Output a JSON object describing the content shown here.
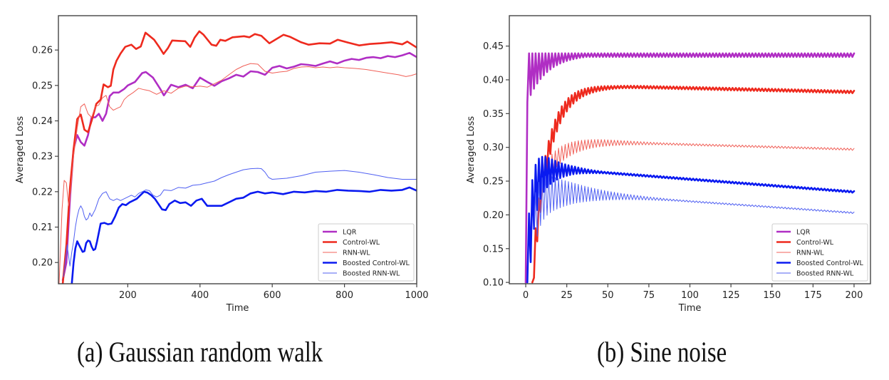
{
  "colors": {
    "LQR": "#b02ec4",
    "Control-WL": "#ee2a1e",
    "RNN-WL": "#f06058",
    "Boosted Control-WL": "#0a1af0",
    "Boosted RNN-WL": "#5060f2",
    "axis": "#444444"
  },
  "captions": {
    "a": "(a) Gaussian random walk",
    "b": "(b) Sine noise"
  },
  "chart_data": [
    {
      "type": "line",
      "id": "a",
      "title": "",
      "xlabel": "Time",
      "ylabel": "Averaged Loss",
      "xlim": [
        8,
        1000
      ],
      "ylim": [
        0.194,
        0.2697
      ],
      "xticks": [
        200,
        400,
        600,
        800,
        1000
      ],
      "yticks": [
        0.2,
        0.21,
        0.22,
        0.23,
        0.24,
        0.25,
        0.26
      ],
      "ytick_labels": [
        "0.20",
        "0.21",
        "0.22",
        "0.23",
        "0.24",
        "0.25",
        "0.26"
      ],
      "grid": false,
      "legend": "lower-right",
      "series": [
        {
          "name": "LQR",
          "width": "thick",
          "x": [
            20,
            30,
            40,
            50,
            60,
            70,
            80,
            90,
            100,
            110,
            120,
            130,
            140,
            150,
            160,
            175,
            190,
            200,
            220,
            240,
            250,
            270,
            290,
            300,
            320,
            340,
            360,
            380,
            400,
            420,
            440,
            460,
            480,
            500,
            520,
            540,
            560,
            580,
            600,
            620,
            640,
            660,
            680,
            700,
            720,
            740,
            760,
            780,
            800,
            820,
            840,
            860,
            880,
            900,
            920,
            940,
            960,
            980,
            1000
          ],
          "y": [
            0.195,
            0.2,
            0.218,
            0.232,
            0.236,
            0.234,
            0.233,
            0.236,
            0.241,
            0.241,
            0.242,
            0.24,
            0.242,
            0.247,
            0.248,
            0.248,
            0.249,
            0.25,
            0.251,
            0.2535,
            0.2538,
            0.2522,
            0.249,
            0.2472,
            0.2502,
            0.2495,
            0.2502,
            0.2492,
            0.2522,
            0.251,
            0.2499,
            0.2512,
            0.252,
            0.253,
            0.2525,
            0.254,
            0.2538,
            0.253,
            0.255,
            0.2555,
            0.2548,
            0.2553,
            0.256,
            0.2558,
            0.2555,
            0.2562,
            0.2568,
            0.2562,
            0.257,
            0.2575,
            0.2572,
            0.2578,
            0.258,
            0.2577,
            0.2583,
            0.258,
            0.2585,
            0.2592,
            0.258
          ]
        },
        {
          "name": "Control-WL",
          "width": "thick",
          "x": [
            20,
            30,
            40,
            50,
            60,
            70,
            80,
            90,
            100,
            113,
            125,
            133,
            145,
            153,
            160,
            169,
            180,
            193,
            210,
            223,
            236,
            249,
            260,
            273,
            286,
            299,
            311,
            323,
            340,
            359,
            373,
            385,
            398,
            410,
            432,
            445,
            456,
            470,
            490,
            522,
            537,
            552,
            570,
            592,
            610,
            631,
            650,
            680,
            701,
            731,
            760,
            781,
            810,
            841,
            870,
            900,
            930,
            960,
            974,
            1000
          ],
          "y": [
            0.194,
            0.205,
            0.221,
            0.232,
            0.2405,
            0.2418,
            0.2375,
            0.2368,
            0.24,
            0.2448,
            0.246,
            0.2503,
            0.2495,
            0.2499,
            0.2545,
            0.257,
            0.259,
            0.2609,
            0.2615,
            0.2603,
            0.261,
            0.2649,
            0.264,
            0.2629,
            0.261,
            0.2589,
            0.2605,
            0.2627,
            0.2626,
            0.2625,
            0.2609,
            0.2635,
            0.2653,
            0.2643,
            0.2615,
            0.2612,
            0.2629,
            0.2626,
            0.2636,
            0.2639,
            0.2636,
            0.2645,
            0.264,
            0.2619,
            0.263,
            0.2643,
            0.2637,
            0.2622,
            0.2615,
            0.2619,
            0.2618,
            0.2629,
            0.2621,
            0.2613,
            0.2617,
            0.2619,
            0.2622,
            0.2616,
            0.2624,
            0.2607
          ]
        },
        {
          "name": "RNN-WL",
          "width": "thin",
          "x": [
            10,
            18,
            24,
            30,
            36,
            42,
            50,
            60,
            70,
            80,
            90,
            100,
            110,
            120,
            130,
            140,
            150,
            160,
            170,
            180,
            190,
            200,
            215,
            230,
            245,
            260,
            280,
            300,
            320,
            340,
            360,
            380,
            400,
            420,
            440,
            460,
            480,
            500,
            520,
            540,
            560,
            580,
            600,
            620,
            640,
            660,
            680,
            700,
            720,
            740,
            760,
            780,
            800,
            830,
            860,
            890,
            920,
            950,
            970,
            985,
            1000
          ],
          "y": [
            0.194,
            0.215,
            0.2232,
            0.2225,
            0.216,
            0.22,
            0.23,
            0.238,
            0.244,
            0.2448,
            0.242,
            0.241,
            0.244,
            0.2445,
            0.2465,
            0.2472,
            0.244,
            0.243,
            0.2435,
            0.244,
            0.246,
            0.247,
            0.248,
            0.2492,
            0.2488,
            0.2485,
            0.2475,
            0.2485,
            0.2478,
            0.2492,
            0.2498,
            0.2496,
            0.2498,
            0.2495,
            0.2505,
            0.2515,
            0.253,
            0.2545,
            0.2555,
            0.2562,
            0.256,
            0.254,
            0.2535,
            0.2538,
            0.254,
            0.2548,
            0.2552,
            0.2553,
            0.255,
            0.2552,
            0.255,
            0.2552,
            0.255,
            0.2548,
            0.2545,
            0.254,
            0.2535,
            0.253,
            0.2525,
            0.2528,
            0.2533
          ]
        },
        {
          "name": "Boosted Control-WL",
          "width": "thick",
          "x": [
            45,
            50,
            55,
            60,
            65,
            70,
            75,
            80,
            85,
            90,
            95,
            100,
            105,
            110,
            115,
            125,
            135,
            145,
            155,
            165,
            175,
            185,
            195,
            205,
            215,
            225,
            235,
            245,
            255,
            265,
            275,
            285,
            295,
            305,
            315,
            330,
            345,
            360,
            375,
            390,
            405,
            420,
            440,
            460,
            480,
            500,
            520,
            540,
            560,
            580,
            600,
            630,
            660,
            690,
            720,
            750,
            780,
            810,
            840,
            870,
            900,
            930,
            960,
            980,
            1000
          ],
          "y": [
            0.194,
            0.2,
            0.204,
            0.206,
            0.205,
            0.204,
            0.203,
            0.2032,
            0.2055,
            0.2062,
            0.206,
            0.2045,
            0.2035,
            0.2038,
            0.206,
            0.211,
            0.2112,
            0.2108,
            0.211,
            0.213,
            0.2155,
            0.2165,
            0.2162,
            0.217,
            0.2175,
            0.218,
            0.219,
            0.22,
            0.2197,
            0.219,
            0.218,
            0.2165,
            0.215,
            0.2148,
            0.2165,
            0.2175,
            0.2168,
            0.217,
            0.216,
            0.2175,
            0.218,
            0.216,
            0.216,
            0.216,
            0.217,
            0.218,
            0.2183,
            0.2195,
            0.22,
            0.2195,
            0.2198,
            0.2193,
            0.22,
            0.2198,
            0.2202,
            0.22,
            0.2205,
            0.2203,
            0.2202,
            0.22,
            0.2205,
            0.2203,
            0.2205,
            0.2212,
            0.2203
          ]
        },
        {
          "name": "Boosted RNN-WL",
          "width": "thin",
          "x": [
            22,
            28,
            32,
            36,
            40,
            45,
            50,
            55,
            60,
            65,
            70,
            75,
            80,
            85,
            90,
            95,
            100,
            110,
            120,
            130,
            140,
            150,
            160,
            170,
            180,
            190,
            200,
            210,
            220,
            230,
            240,
            250,
            260,
            270,
            280,
            290,
            300,
            320,
            340,
            360,
            380,
            400,
            420,
            440,
            460,
            480,
            500,
            520,
            540,
            560,
            570,
            580,
            590,
            600,
            640,
            680,
            720,
            760,
            800,
            840,
            880,
            920,
            960,
            1000
          ],
          "y": [
            0.196,
            0.201,
            0.205,
            0.202,
            0.199,
            0.203,
            0.206,
            0.21,
            0.213,
            0.215,
            0.216,
            0.215,
            0.213,
            0.212,
            0.2125,
            0.214,
            0.213,
            0.215,
            0.218,
            0.2195,
            0.22,
            0.218,
            0.2175,
            0.218,
            0.2175,
            0.218,
            0.2185,
            0.219,
            0.2185,
            0.2195,
            0.22,
            0.2205,
            0.2203,
            0.219,
            0.2185,
            0.219,
            0.2205,
            0.2203,
            0.2212,
            0.221,
            0.2218,
            0.222,
            0.2225,
            0.223,
            0.224,
            0.2248,
            0.2255,
            0.2262,
            0.2265,
            0.2266,
            0.2265,
            0.2255,
            0.224,
            0.2235,
            0.2238,
            0.2245,
            0.2255,
            0.2258,
            0.226,
            0.2255,
            0.2248,
            0.224,
            0.2235,
            0.2235
          ]
        }
      ]
    },
    {
      "type": "line",
      "id": "b",
      "title": "",
      "xlabel": "Time",
      "ylabel": "Averaged Loss",
      "xlim": [
        -10,
        210
      ],
      "ylim": [
        0.098,
        0.495
      ],
      "xticks": [
        0,
        25,
        50,
        75,
        100,
        125,
        150,
        175,
        200
      ],
      "yticks": [
        0.1,
        0.15,
        0.2,
        0.25,
        0.3,
        0.35,
        0.4,
        0.45
      ],
      "ytick_labels": [
        "0.10",
        "0.15",
        "0.20",
        "0.25",
        "0.30",
        "0.35",
        "0.40",
        "0.45"
      ],
      "grid": false,
      "legend": "lower-right",
      "oscillation_note": "series oscillate with period ~2 time steps, amplitude decays",
      "series": [
        {
          "name": "LQR",
          "width": "thick",
          "start": 0.1,
          "plateau": 0.4375,
          "end": 0.439,
          "rise": 0.5,
          "osc_amp0": 0.055,
          "osc_decay": 12,
          "osc_amp_floor": 0.0025,
          "drift": 0.0
        },
        {
          "name": "Control-WL",
          "width": "thick",
          "start_t": 4,
          "start": 0.1,
          "plateau": 0.39,
          "end": 0.382,
          "rise": 9,
          "osc_amp0": 0.025,
          "osc_decay": 20,
          "osc_amp_floor": 0.0018,
          "peak_t": 60
        },
        {
          "name": "RNN-WL",
          "width": "thin",
          "start_t": 6,
          "start": 0.22,
          "plateau": 0.308,
          "end": 0.297,
          "rise": 10,
          "osc_amp0": 0.02,
          "osc_decay": 30,
          "osc_amp_floor": 0.0015,
          "peak_t": 45
        },
        {
          "name": "Boosted Control-WL",
          "width": "thick",
          "start_t": 1,
          "start": 0.1,
          "plateau": 0.266,
          "end": 0.234,
          "rise": 3,
          "osc_amp0": 0.06,
          "osc_decay": 12,
          "osc_amp_floor": 0.0012,
          "peak_t": 30
        },
        {
          "name": "Boosted RNN-WL",
          "width": "thin",
          "start_t": 5,
          "start": 0.18,
          "plateau": 0.232,
          "end": 0.203,
          "rise": 3,
          "osc_amp0": 0.04,
          "osc_decay": 25,
          "osc_amp_floor": 0.0012,
          "peak_t": 30
        }
      ]
    }
  ],
  "legend_items": [
    "LQR",
    "Control-WL",
    "RNN-WL",
    "Boosted Control-WL",
    "Boosted RNN-WL"
  ]
}
